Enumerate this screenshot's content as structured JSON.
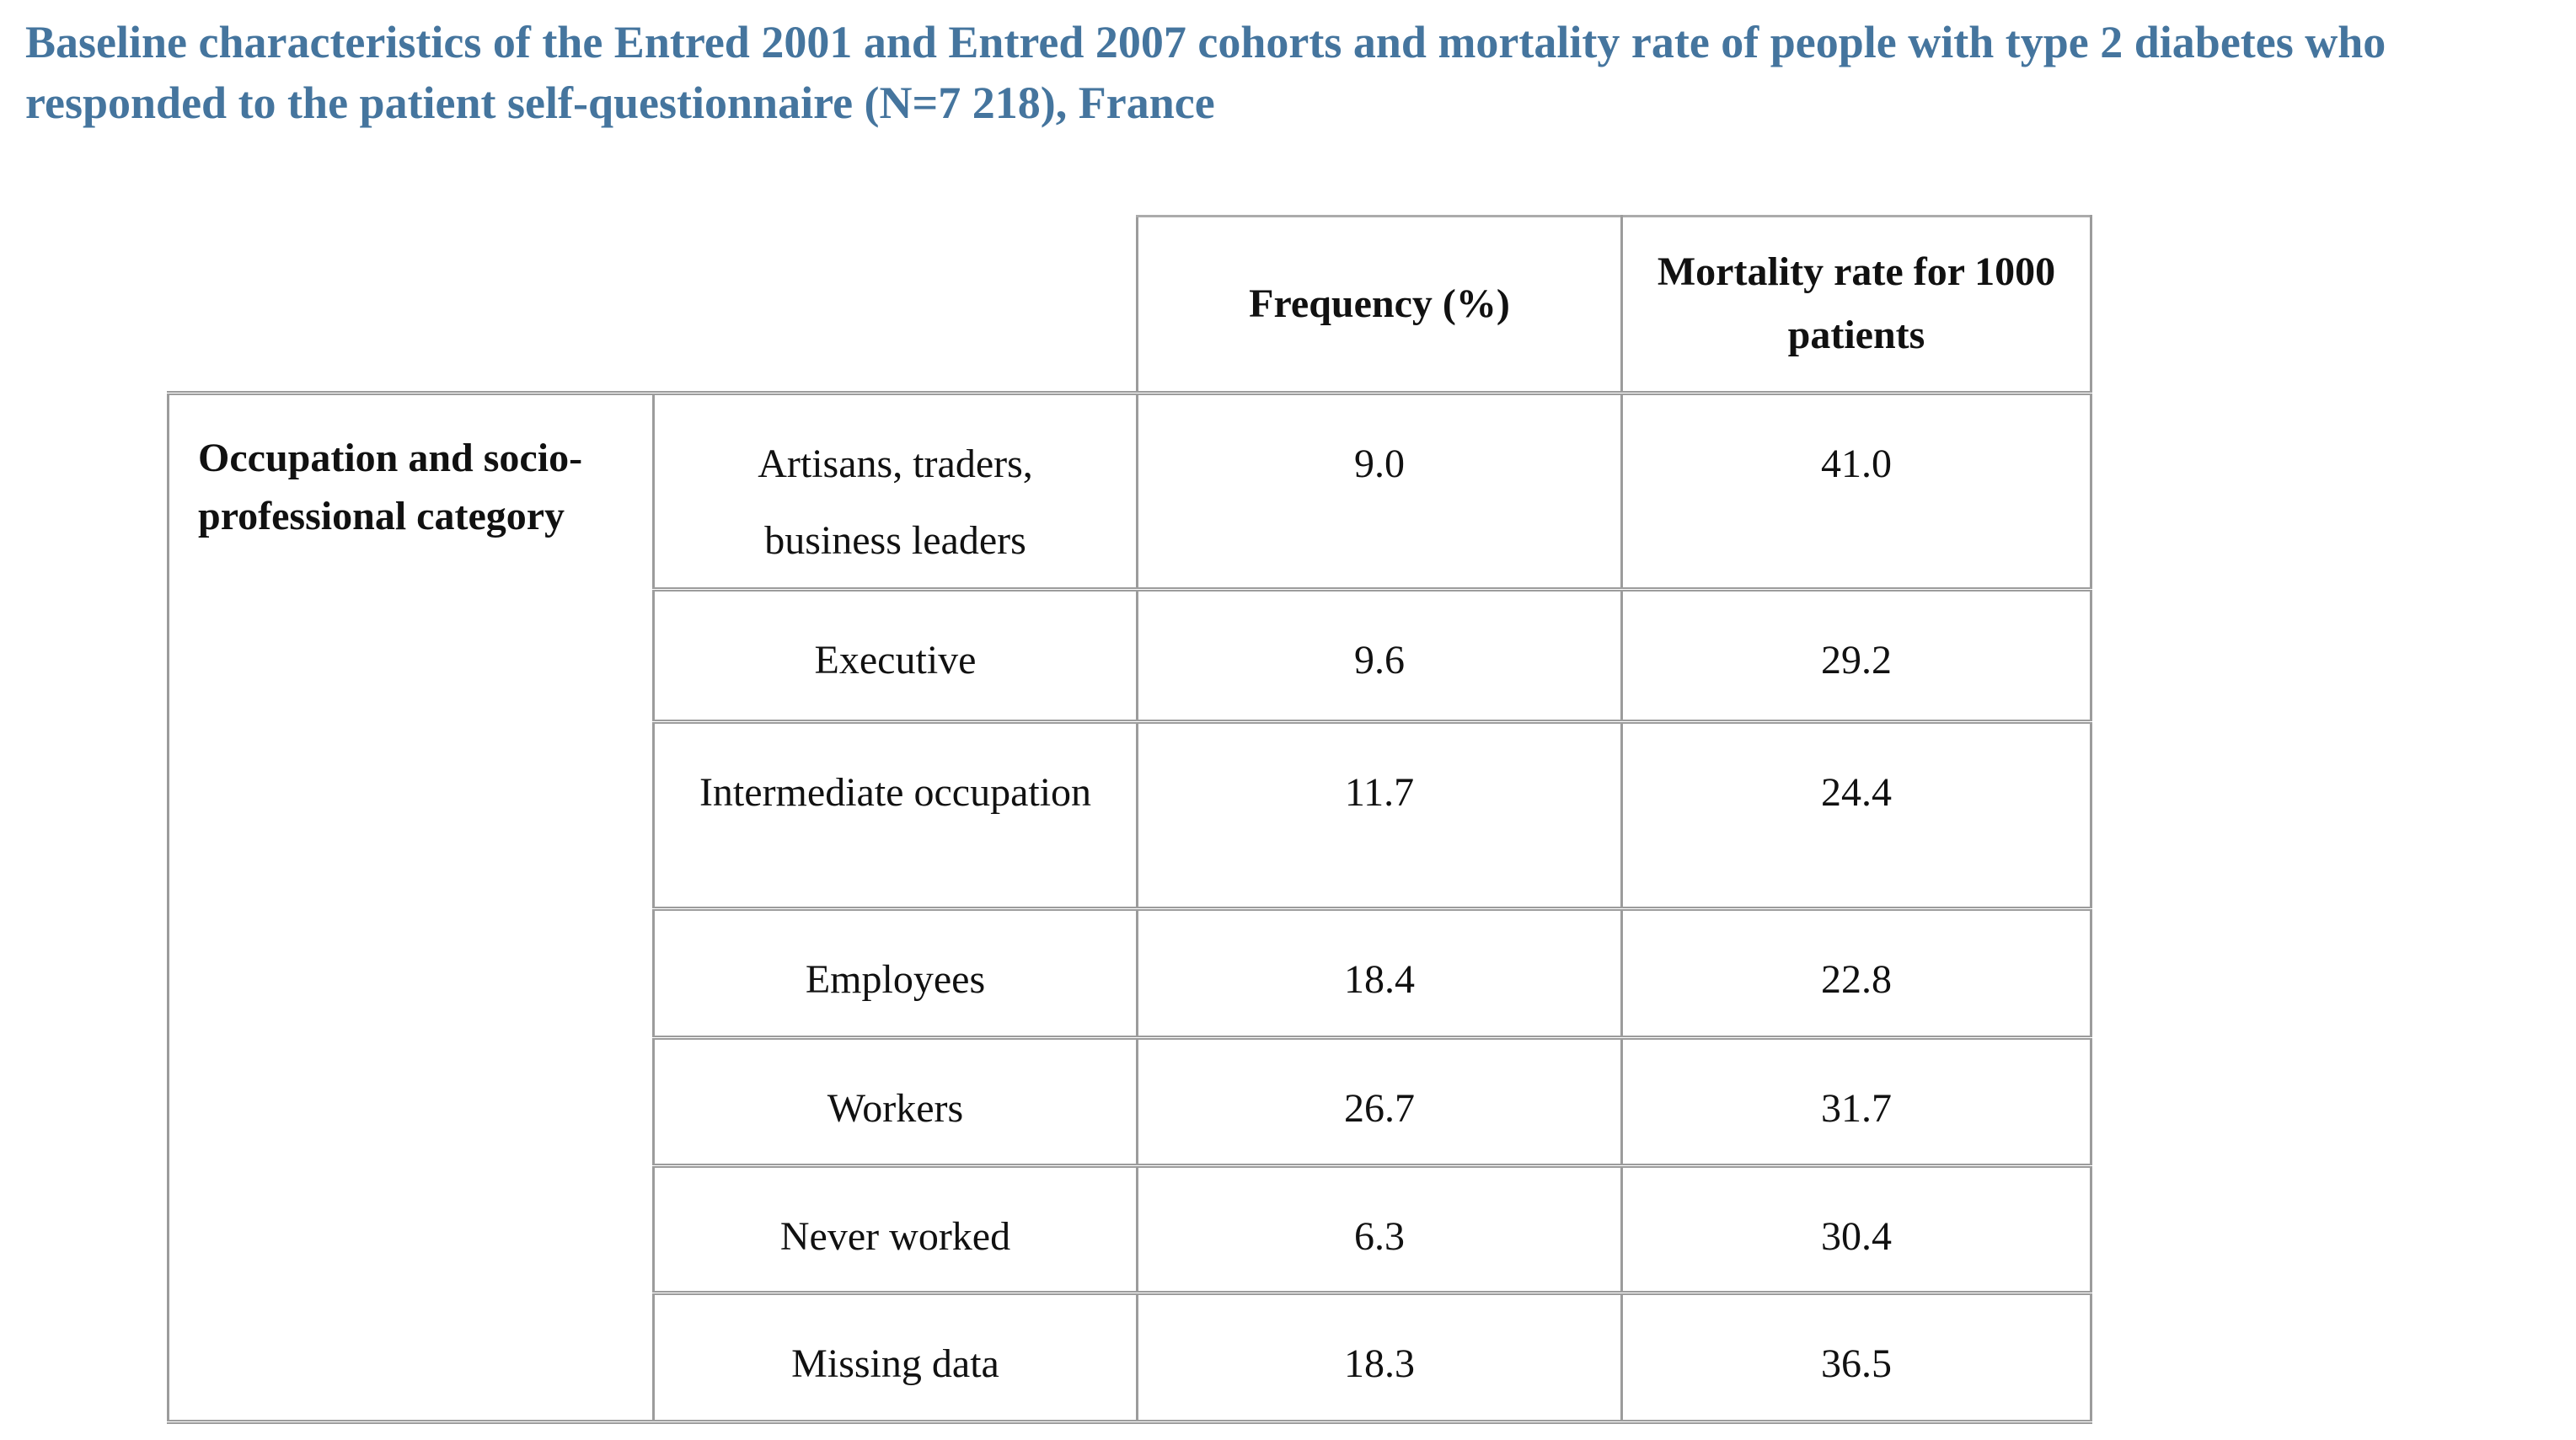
{
  "title": {
    "text": "Baseline characteristics of the Entred 2001 and Entred 2007 cohorts and mortality rate of people with type 2 diabetes who responded to the patient self-questionnaire (N=7 218), France",
    "color": "#45759E"
  },
  "table": {
    "header": {
      "frequency": "Frequency (%)",
      "mortality": "Mortality rate for 1000 patients"
    },
    "row_group_label": "Occupation and socio-professional category",
    "rows": [
      {
        "label": "Artisans, traders, business leaders",
        "frequency": "9.0",
        "mortality_rate_per_1000": "41.0"
      },
      {
        "label": "Executive",
        "frequency": "9.6",
        "mortality_rate_per_1000": "29.2"
      },
      {
        "label": "Intermediate occupation",
        "frequency": "11.7",
        "mortality_rate_per_1000": "24.4"
      },
      {
        "label": "Employees",
        "frequency": "18.4",
        "mortality_rate_per_1000": "22.8"
      },
      {
        "label": "Workers",
        "frequency": "26.7",
        "mortality_rate_per_1000": "31.7"
      },
      {
        "label": "Never worked",
        "frequency": "6.3",
        "mortality_rate_per_1000": "30.4"
      },
      {
        "label": "Missing data",
        "frequency": "18.3",
        "mortality_rate_per_1000": "36.5"
      }
    ]
  },
  "colors": {
    "title": "#45759E",
    "border": "#9c9c9c",
    "text": "#111111",
    "background": "#ffffff"
  },
  "chart_data": {
    "type": "table",
    "title": "Baseline characteristics of the Entred 2001 and Entred 2007 cohorts and mortality rate of people with type 2 diabetes who responded to the patient self-questionnaire (N=7 218), France",
    "categories": [
      "Artisans, traders, business leaders",
      "Executive",
      "Intermediate occupation",
      "Employees",
      "Workers",
      "Never worked",
      "Missing data"
    ],
    "series": [
      {
        "name": "Frequency (%)",
        "values": [
          9.0,
          9.6,
          11.7,
          18.4,
          26.7,
          6.3,
          18.3
        ]
      },
      {
        "name": "Mortality rate for 1000 patients",
        "values": [
          41.0,
          29.2,
          24.4,
          22.8,
          31.7,
          30.4,
          36.5
        ]
      }
    ]
  }
}
